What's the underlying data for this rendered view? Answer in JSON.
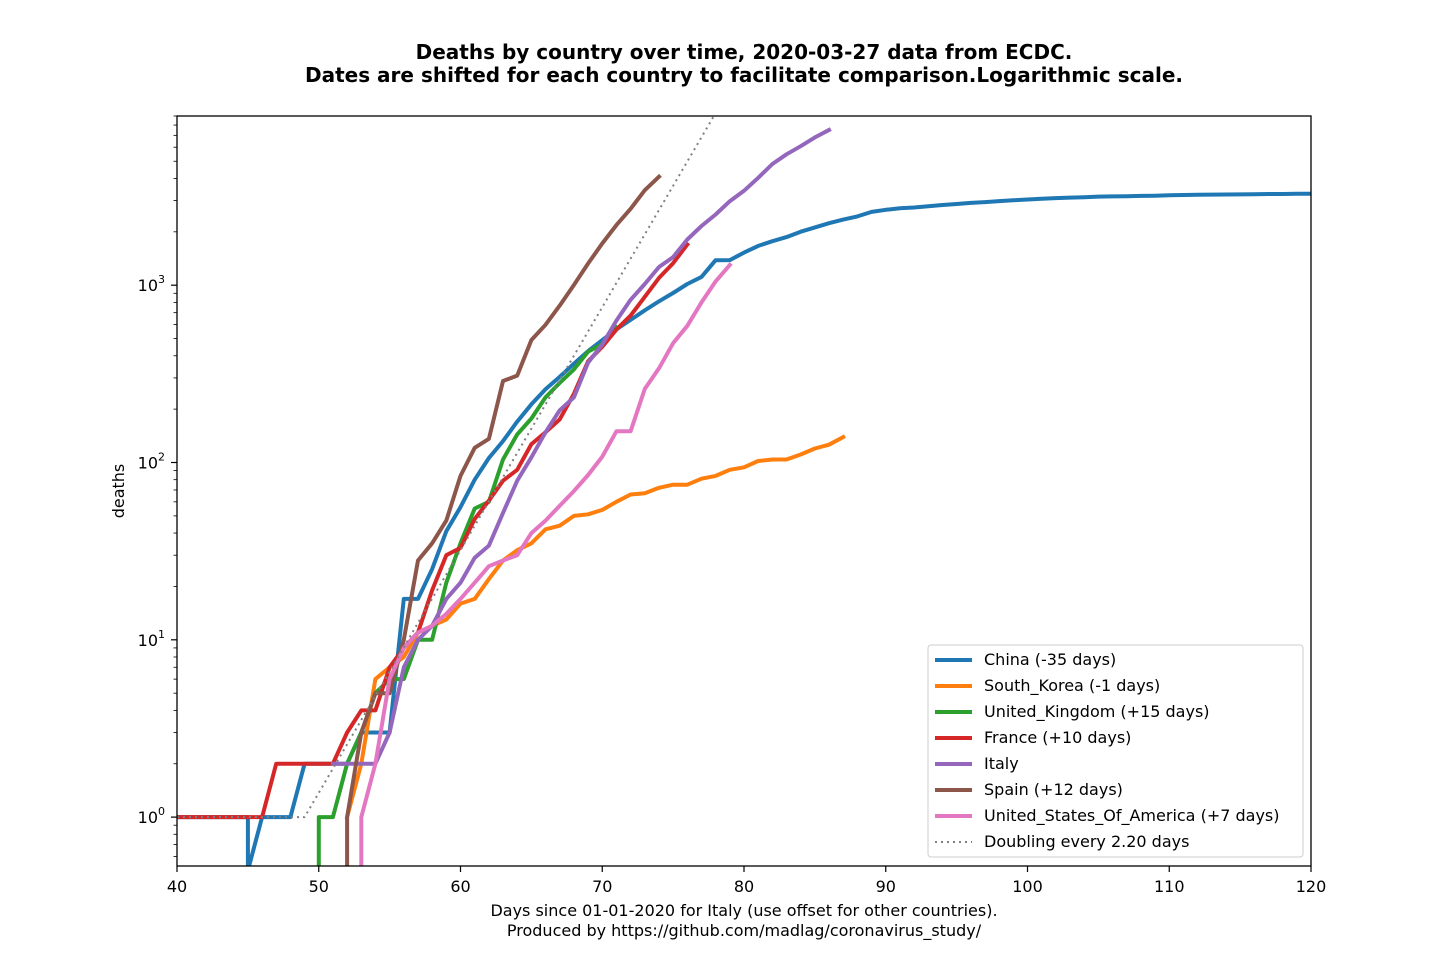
{
  "chart_data": {
    "type": "line",
    "title": "Deaths by country over time, 2020-03-27 data from ECDC.",
    "subtitle": "Dates are shifted for each country to facilitate comparison.Logarithmic scale.",
    "xlabel": "Days since 01-01-2020 for Italy (use offset for other countries).",
    "xlabel2": "Produced by https://github.com/madlag/coronavirus_study/",
    "ylabel": "deaths",
    "xlim": [
      40,
      120
    ],
    "ylim": [
      0.53,
      9000
    ],
    "yscale": "log",
    "grid": false,
    "legend_position": "lower-right",
    "x_ticks": [
      "40",
      "50",
      "60",
      "70",
      "80",
      "90",
      "100",
      "110",
      "120"
    ],
    "y_ticks": [
      {
        "value": 1,
        "base": "10",
        "exp": "0"
      },
      {
        "value": 10,
        "base": "10",
        "exp": "1"
      },
      {
        "value": 100,
        "base": "10",
        "exp": "2"
      },
      {
        "value": 1000,
        "base": "10",
        "exp": "3"
      }
    ],
    "series": [
      {
        "name": "China (-35 days)",
        "color": "#1f77b4",
        "x": [
          40,
          45,
          45,
          46,
          47,
          48,
          49,
          50,
          51,
          52,
          53,
          54,
          55,
          56,
          57,
          58,
          59,
          60,
          61,
          62,
          63,
          64,
          65,
          66,
          67,
          68,
          69,
          70,
          71,
          72,
          73,
          74,
          75,
          76,
          77,
          78,
          79,
          80,
          81,
          82,
          83,
          84,
          85,
          86,
          87,
          88,
          89,
          90,
          91,
          92,
          93,
          94,
          95,
          96,
          97,
          98,
          99,
          100,
          101,
          102,
          103,
          104,
          105,
          106,
          107,
          108,
          109,
          110,
          111,
          112,
          113,
          114,
          115,
          116,
          117,
          118,
          119,
          120
        ],
        "y": [
          1,
          1,
          0.5,
          1,
          1,
          1,
          2,
          2,
          2,
          2,
          3,
          3,
          3,
          17,
          17,
          25,
          41,
          56,
          80,
          106,
          132,
          170,
          213,
          259,
          304,
          361,
          425,
          490,
          563,
          637,
          722,
          811,
          904,
          1016,
          1113,
          1383,
          1385,
          1526,
          1665,
          1770,
          1868,
          2004,
          2118,
          2236,
          2345,
          2442,
          2592,
          2663,
          2715,
          2744,
          2788,
          2835,
          2870,
          2912,
          2943,
          2981,
          3013,
          3042,
          3070,
          3097,
          3119,
          3136,
          3158,
          3169,
          3176,
          3189,
          3199,
          3213,
          3226,
          3237,
          3245,
          3249,
          3253,
          3261,
          3267,
          3270,
          3277,
          3281
        ]
      },
      {
        "name": "South_Korea (-1 days)",
        "color": "#ff7f0e",
        "x": [
          52,
          53,
          54,
          55,
          56,
          57,
          58,
          59,
          60,
          61,
          62,
          63,
          64,
          65,
          66,
          67,
          68,
          69,
          70,
          71,
          72,
          73,
          74,
          75,
          76,
          77,
          78,
          79,
          80,
          81,
          82,
          83,
          84,
          85,
          86,
          87
        ],
        "y": [
          1,
          2,
          6,
          7,
          8,
          11,
          12,
          13,
          16,
          17,
          22,
          28,
          32,
          35,
          42,
          44,
          50,
          51,
          54,
          60,
          66,
          67,
          72,
          75,
          75,
          81,
          84,
          91,
          94,
          102,
          104,
          104,
          111,
          120,
          126,
          139
        ]
      },
      {
        "name": "United_Kingdom (+15 days)",
        "color": "#2ca02c",
        "x": [
          50,
          50,
          51,
          52,
          53,
          54,
          55,
          56,
          57,
          58,
          59,
          60,
          61,
          62,
          63,
          64,
          65,
          66,
          67,
          68,
          69,
          70,
          71
        ],
        "y": [
          0.5,
          1,
          1,
          2,
          3,
          5,
          6,
          6,
          10,
          10,
          21,
          35,
          55,
          60,
          104,
          144,
          177,
          233,
          281,
          335,
          422,
          465,
          578
        ]
      },
      {
        "name": "France (+10 days)",
        "color": "#d62728",
        "x": [
          40,
          41,
          42,
          43,
          44,
          45,
          46,
          47,
          48,
          49,
          50,
          51,
          52,
          53,
          54,
          55,
          56,
          57,
          58,
          59,
          60,
          61,
          62,
          63,
          64,
          65,
          66,
          67,
          68,
          69,
          70,
          71,
          72,
          73,
          74,
          75,
          76
        ],
        "y": [
          1,
          1,
          1,
          1,
          1,
          1,
          1,
          2,
          2,
          2,
          2,
          2,
          3,
          4,
          4,
          7,
          9,
          11,
          19,
          30,
          33,
          48,
          61,
          79,
          91,
          127,
          148,
          175,
          244,
          372,
          450,
          562,
          674,
          860,
          1100,
          1331,
          1696
        ]
      },
      {
        "name": "Italy",
        "color": "#9467bd",
        "x": [
          51,
          52,
          53,
          54,
          55,
          56,
          57,
          58,
          59,
          60,
          61,
          62,
          63,
          64,
          65,
          66,
          67,
          68,
          69,
          70,
          71,
          72,
          73,
          74,
          75,
          76,
          77,
          78,
          79,
          80,
          81,
          82,
          83,
          84,
          85,
          86
        ],
        "y": [
          2,
          2,
          2,
          2,
          3,
          7,
          10,
          12,
          17,
          21,
          29,
          34,
          52,
          79,
          107,
          148,
          197,
          233,
          366,
          463,
          631,
          827,
          1016,
          1266,
          1441,
          1809,
          2158,
          2503,
          2978,
          3405,
          4032,
          4825,
          5476,
          6077,
          6820,
          7503
        ]
      },
      {
        "name": "Spain (+12 days)",
        "color": "#8c564b",
        "x": [
          52,
          52,
          53,
          54,
          55,
          56,
          57,
          58,
          59,
          60,
          61,
          62,
          63,
          64,
          65,
          66,
          67,
          68,
          69,
          70,
          71,
          72,
          73,
          74
        ],
        "y": [
          0.5,
          1,
          3,
          5,
          5,
          10,
          28,
          35,
          47,
          84,
          121,
          136,
          288,
          309,
          491,
          598,
          767,
          1002,
          1326,
          1720,
          2182,
          2696,
          3434,
          4089
        ]
      },
      {
        "name": "United_States_Of_America (+7 days)",
        "color": "#e377c2",
        "x": [
          53,
          53,
          54,
          55,
          56,
          57,
          58,
          59,
          60,
          61,
          62,
          63,
          64,
          65,
          66,
          67,
          68,
          69,
          70,
          71,
          72,
          73,
          74,
          75,
          76,
          77,
          78,
          79
        ],
        "y": [
          0.5,
          1,
          2,
          6,
          9,
          11,
          12,
          14,
          17,
          21,
          26,
          28,
          30,
          40,
          47,
          57,
          69,
          85,
          108,
          150,
          150,
          260,
          340,
          471,
          590,
          800,
          1050,
          1300
        ]
      },
      {
        "name": "Doubling every 2.20 days",
        "color": "#808080",
        "dashed": true,
        "x": [
          40,
          49,
          80
        ],
        "y": [
          1,
          1,
          17600
        ]
      }
    ]
  }
}
